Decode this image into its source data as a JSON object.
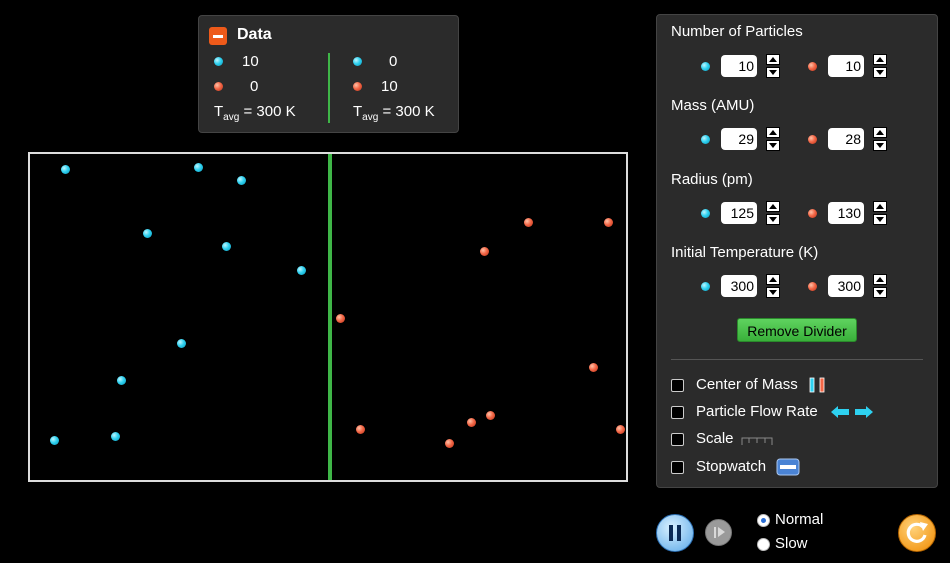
{
  "data_panel": {
    "title": "Data",
    "left": {
      "blue_count": "10",
      "red_count": "0",
      "tavg_value": "= 300 K"
    },
    "right": {
      "blue_count": "0",
      "red_count": "10",
      "tavg_value": "= 300 K"
    },
    "tavg_symbol": "T",
    "tavg_subscript": "avg"
  },
  "controls": {
    "number_of_particles": {
      "label": "Number of Particles",
      "blue": "10",
      "red": "10"
    },
    "mass": {
      "label": "Mass (AMU)",
      "blue": "29",
      "red": "28"
    },
    "radius": {
      "label": "Radius (pm)",
      "blue": "125",
      "red": "130"
    },
    "initial_temperature": {
      "label": "Initial Temperature (K)",
      "blue": "300",
      "red": "300"
    },
    "remove_divider_label": "Remove Divider",
    "checkboxes": {
      "center_of_mass": "Center of Mass",
      "particle_flow_rate": "Particle Flow Rate",
      "scale": "Scale",
      "stopwatch": "Stopwatch"
    }
  },
  "playback": {
    "speed_normal": "Normal",
    "speed_slow": "Slow",
    "selected_speed": "Normal"
  },
  "colors": {
    "blue_particle": "#2ed1f0",
    "red_particle": "#f36747",
    "divider": "#3fb648"
  }
}
